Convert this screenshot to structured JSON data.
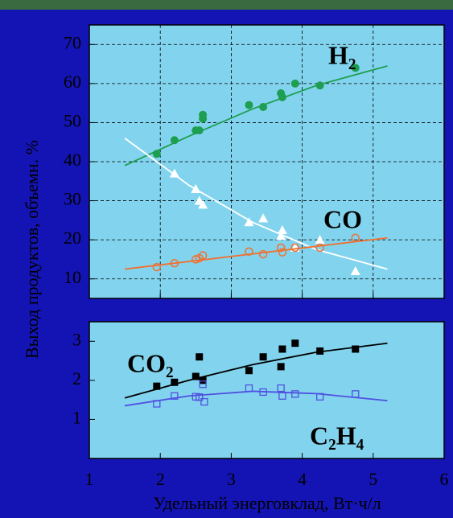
{
  "chart_data": [
    {
      "type": "scatter",
      "ylabel": "Выход продуктов,  объемн. %",
      "xlim": [
        1,
        6
      ],
      "xticks": [
        1,
        2,
        3,
        4,
        5,
        6
      ],
      "ylim": [
        5,
        75
      ],
      "yticks": [
        10,
        20,
        30,
        40,
        50,
        60,
        70
      ],
      "grid": true,
      "series": [
        {
          "name": "H₂",
          "color": "#1e9e50",
          "marker": "circle",
          "x": [
            1.95,
            2.2,
            2.5,
            2.55,
            2.6,
            2.6,
            3.25,
            3.45,
            3.7,
            3.72,
            3.9,
            4.25,
            4.75
          ],
          "values": [
            42,
            45.5,
            48,
            48,
            51,
            52,
            54.5,
            54,
            57.5,
            56.5,
            60,
            59.5,
            64
          ],
          "fit_x": [
            1.5,
            2.4,
            3.3,
            4.2,
            5.2
          ],
          "fit_values": [
            39,
            46.5,
            53.5,
            59.5,
            64.5
          ]
        },
        {
          "color": "#ffffff",
          "marker": "triangle",
          "x": [
            2.2,
            2.5,
            2.55,
            2.6,
            3.25,
            3.45,
            3.7,
            3.72,
            3.9,
            4.25,
            4.75
          ],
          "values": [
            37,
            33,
            30,
            29,
            24.5,
            25.5,
            21,
            22.5,
            18,
            20,
            12
          ],
          "fit_x": [
            1.5,
            2.4,
            3.3,
            4.2,
            5.2
          ],
          "fit_values": [
            46,
            34,
            24.5,
            17.5,
            12.5
          ]
        },
        {
          "name": "CO",
          "color": "#f07030",
          "marker": "circle-open",
          "x": [
            1.95,
            2.2,
            2.5,
            2.55,
            2.6,
            3.25,
            3.45,
            3.7,
            3.72,
            3.9,
            4.25,
            4.75
          ],
          "values": [
            13,
            14,
            15,
            15.3,
            16,
            17,
            16.3,
            18,
            16.8,
            18,
            18,
            20.5
          ],
          "fit_x": [
            1.5,
            5.2
          ],
          "fit_values": [
            12.5,
            20.5
          ]
        }
      ]
    },
    {
      "type": "scatter",
      "xlabel": "Удельный энерговклад,  Вт·ч/л",
      "xlim": [
        1,
        6
      ],
      "xticks": [
        1,
        2,
        3,
        4,
        5,
        6
      ],
      "ylim": [
        0,
        3.5
      ],
      "yticks": [
        1,
        2,
        3
      ],
      "grid": false,
      "series": [
        {
          "name": "CO₂",
          "color": "#000000",
          "marker": "square",
          "x": [
            1.95,
            2.2,
            2.5,
            2.55,
            2.6,
            3.25,
            3.45,
            3.7,
            3.72,
            3.9,
            4.25,
            4.75
          ],
          "values": [
            1.85,
            1.95,
            2.1,
            2.6,
            2.0,
            2.25,
            2.6,
            2.35,
            2.8,
            2.95,
            2.75,
            2.8
          ],
          "fit_x": [
            1.5,
            2.4,
            3.3,
            4.2,
            5.2
          ],
          "fit_values": [
            1.55,
            2.0,
            2.4,
            2.72,
            2.95
          ]
        },
        {
          "name": "C₂H₄",
          "color": "#5050e0",
          "marker": "square-open",
          "x": [
            1.95,
            2.2,
            2.5,
            2.55,
            2.6,
            2.62,
            3.25,
            3.45,
            3.7,
            3.72,
            3.9,
            4.25,
            4.75
          ],
          "values": [
            1.4,
            1.6,
            1.58,
            1.57,
            1.9,
            1.45,
            1.8,
            1.7,
            1.8,
            1.6,
            1.65,
            1.58,
            1.65
          ],
          "fit_x": [
            1.5,
            2.4,
            3.3,
            4.2,
            5.2
          ],
          "fit_values": [
            1.35,
            1.6,
            1.72,
            1.66,
            1.48
          ]
        }
      ]
    }
  ]
}
